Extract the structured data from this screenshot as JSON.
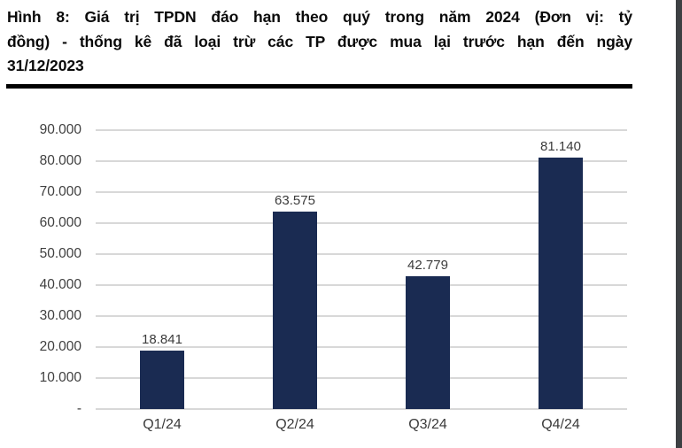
{
  "figure": {
    "title_lines": [
      "Hình 8: Giá trị TPDN đáo hạn theo quý trong năm 2024 (Đơn vị: tỷ",
      "đồng) - thống kê đã loại trừ các TP được mua lại trước hạn đến ngày",
      "31/12/2023"
    ]
  },
  "chart_data": {
    "type": "bar",
    "title": "Hình 8: Giá trị TPDN đáo hạn theo quý trong năm 2024 (Đơn vị: tỷ đồng) - thống kê đã loại trừ các TP được mua lại trước hạn đến ngày 31/12/2023",
    "categories": [
      "Q1/24",
      "Q2/24",
      "Q3/24",
      "Q4/24"
    ],
    "values": [
      18841,
      63575,
      42779,
      81140
    ],
    "value_labels": [
      "18.841",
      "63.575",
      "42.779",
      "81.140"
    ],
    "xlabel": "",
    "ylabel": "",
    "ylim": [
      0,
      90000
    ],
    "y_tick_values": [
      90000,
      80000,
      70000,
      60000,
      50000,
      40000,
      30000,
      20000,
      10000,
      0
    ],
    "y_tick_labels": [
      "90.000",
      "80.000",
      "70.000",
      "60.000",
      "50.000",
      "40.000",
      "30.000",
      "20.000",
      "10.000",
      "-"
    ],
    "grid": true,
    "legend_position": "none",
    "bar_color": "#1a2b52",
    "gridline_color": "#d8d8d8",
    "axis_label_color": "#404040",
    "data_label_color": "#3b3b3b"
  }
}
